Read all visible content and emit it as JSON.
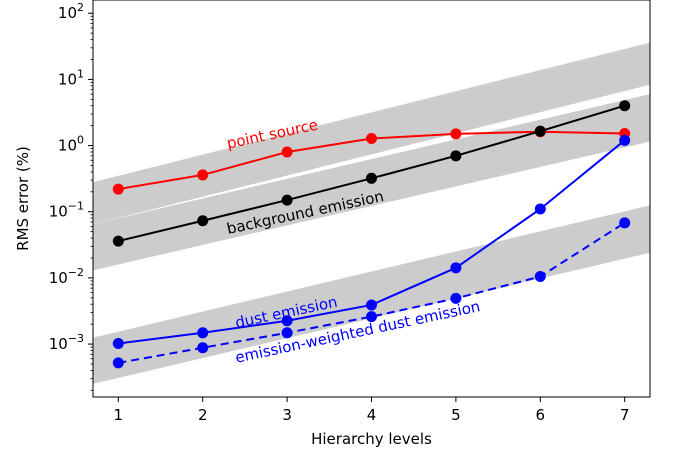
{
  "chart_data": {
    "type": "line",
    "xlabel": "Hierarchy levels",
    "ylabel": "RMS error (%)",
    "xlim": [
      0.7,
      7.3
    ],
    "ylim_log10": [
      -3.8,
      2.2
    ],
    "yscale": "log",
    "x": [
      1,
      2,
      3,
      4,
      5,
      6,
      7
    ],
    "x_ticks": [
      "1",
      "2",
      "3",
      "4",
      "5",
      "6",
      "7"
    ],
    "y_ticks": [
      {
        "exp": 2,
        "base": "10",
        "power": "2"
      },
      {
        "exp": 1,
        "base": "10",
        "power": "1"
      },
      {
        "exp": 0,
        "base": "10",
        "power": "0"
      },
      {
        "exp": -1,
        "base": "10",
        "power": "−1"
      },
      {
        "exp": -2,
        "base": "10",
        "power": "−2"
      },
      {
        "exp": -3,
        "base": "10",
        "power": "−3"
      }
    ],
    "series": [
      {
        "name": "point source",
        "color": "#ff0000",
        "linestyle": "solid",
        "values": [
          0.22,
          0.36,
          0.8,
          1.28,
          1.5,
          1.62,
          1.52
        ]
      },
      {
        "name": "background emission",
        "color": "#000000",
        "linestyle": "solid",
        "values": [
          0.036,
          0.073,
          0.15,
          0.32,
          0.7,
          1.65,
          4.0
        ]
      },
      {
        "name": "dust emission",
        "color": "#0000ff",
        "linestyle": "solid",
        "values": [
          0.00102,
          0.00148,
          0.00225,
          0.0039,
          0.0142,
          0.11,
          1.2
        ]
      },
      {
        "name": "emission-weighted dust emission",
        "color": "#0000ff",
        "linestyle": "dashed",
        "values": [
          0.00052,
          0.00088,
          0.00148,
          0.0026,
          0.0049,
          0.0105,
          0.068
        ]
      }
    ],
    "bands": [
      {
        "color": "#cccccc",
        "x": [
          0.7,
          7.3
        ],
        "upper": [
          0.28,
          36.0
        ],
        "lower": [
          0.065,
          8.3
        ]
      },
      {
        "color": "#cccccc",
        "x": [
          0.7,
          7.3
        ],
        "upper": [
          0.065,
          6.0
        ],
        "lower": [
          0.013,
          1.15
        ]
      },
      {
        "color": "#cccccc",
        "x": [
          0.7,
          7.3
        ],
        "upper": [
          0.00125,
          0.125
        ],
        "lower": [
          0.00025,
          0.024
        ]
      }
    ],
    "annotations": [
      {
        "text": "point source",
        "color": "#ff0000",
        "series": 0
      },
      {
        "text": "background emission",
        "color": "#000000",
        "series": 1
      },
      {
        "text": "dust emission",
        "color": "#0000ff",
        "series": 2
      },
      {
        "text": "emission-weighted dust emission",
        "color": "#0000ff",
        "series": 3
      }
    ],
    "grid": false,
    "legend": "none"
  }
}
